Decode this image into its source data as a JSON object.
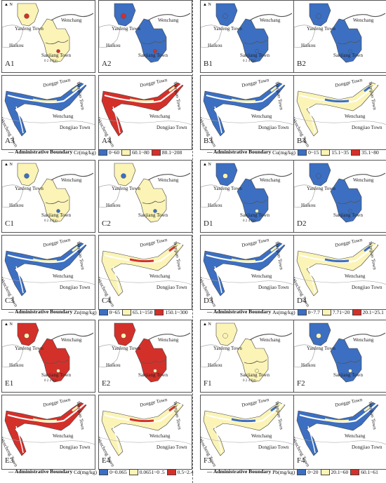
{
  "legend_title": "Administrative Boundary",
  "colors": {
    "blue": "#3c6fc1",
    "yellow": "#fbf4b6",
    "red": "#d4302a",
    "outline": "#444444",
    "river": "#ffffff"
  },
  "town_labels": {
    "yanfeng": "Yanfeng Town",
    "wenchang": "Wenchang",
    "haikou": "Haikou",
    "sanjiang": "Sanjiang Town",
    "dongge": "Dongge Town",
    "dongjiao": "Dongjiao Town",
    "wencheng": "Wencheng Town",
    "wenjiao": "Wenjiao Town"
  },
  "scale_labels": [
    "0",
    "2",
    "4 Km"
  ],
  "north_label": "N",
  "metals": [
    {
      "id": "cr",
      "unit": "Cr(mg/kg)",
      "classes": [
        "0~60",
        "60.1~80",
        "80.1~208"
      ],
      "class_colors": [
        "blue",
        "yellow",
        "red"
      ],
      "panels": [
        {
          "label": "A1",
          "fill": "yellow",
          "accent": "red"
        },
        {
          "label": "A2",
          "fill": "blue",
          "accent": "red"
        },
        {
          "label": "A3",
          "fill": "blue",
          "accent": "yellow"
        },
        {
          "label": "A4",
          "fill": "red",
          "accent": "yellow"
        }
      ]
    },
    {
      "id": "cu",
      "unit": "Cu(mg/kg)",
      "classes": [
        "0~15",
        "15.1~35",
        "35.1~80"
      ],
      "class_colors": [
        "blue",
        "yellow",
        "red"
      ],
      "panels": [
        {
          "label": "B1",
          "fill": "blue",
          "accent": "blue"
        },
        {
          "label": "B2",
          "fill": "blue",
          "accent": "blue"
        },
        {
          "label": "B3",
          "fill": "blue",
          "accent": "yellow"
        },
        {
          "label": "B4",
          "fill": "yellow",
          "accent": "blue"
        }
      ]
    },
    {
      "id": "zn",
      "unit": "Zn(mg/kg)",
      "classes": [
        "0~65",
        "65.1~150",
        "150.1~300"
      ],
      "class_colors": [
        "blue",
        "yellow",
        "red"
      ],
      "panels": [
        {
          "label": "C1",
          "fill": "yellow",
          "accent": "blue"
        },
        {
          "label": "C2",
          "fill": "yellow",
          "accent": "blue"
        },
        {
          "label": "C3",
          "fill": "blue",
          "accent": "yellow"
        },
        {
          "label": "C4",
          "fill": "yellow",
          "accent": "red"
        }
      ]
    },
    {
      "id": "as",
      "unit": "As(mg/kg)",
      "classes": [
        "0~7.7",
        "7.71~20",
        "20.1~25.1"
      ],
      "class_colors": [
        "blue",
        "yellow",
        "red"
      ],
      "panels": [
        {
          "label": "D1",
          "fill": "blue",
          "accent": "yellow"
        },
        {
          "label": "D2",
          "fill": "blue",
          "accent": "blue"
        },
        {
          "label": "D3",
          "fill": "blue",
          "accent": "yellow"
        },
        {
          "label": "D4",
          "fill": "yellow",
          "accent": "blue"
        }
      ]
    },
    {
      "id": "cd",
      "unit": "Cd(mg/kg)",
      "classes": [
        "0~0.065",
        "0.0651~0 .5",
        "0.5~2.4"
      ],
      "class_colors": [
        "blue",
        "yellow",
        "red"
      ],
      "panels": [
        {
          "label": "E1",
          "fill": "red",
          "accent": "yellow"
        },
        {
          "label": "E2",
          "fill": "red",
          "accent": "yellow"
        },
        {
          "label": "E3",
          "fill": "red",
          "accent": "yellow"
        },
        {
          "label": "E4",
          "fill": "yellow",
          "accent": "red"
        }
      ]
    },
    {
      "id": "pb",
      "unit": "Pb(mg/kg)",
      "classes": [
        "0~20",
        "20.1~60",
        "60.1~61"
      ],
      "class_colors": [
        "blue",
        "yellow",
        "red"
      ],
      "panels": [
        {
          "label": "F1",
          "fill": "yellow",
          "accent": "yellow"
        },
        {
          "label": "F2",
          "fill": "blue",
          "accent": "yellow"
        },
        {
          "label": "F3",
          "fill": "yellow",
          "accent": "blue"
        },
        {
          "label": "F4",
          "fill": "blue",
          "accent": "yellow"
        }
      ]
    }
  ]
}
